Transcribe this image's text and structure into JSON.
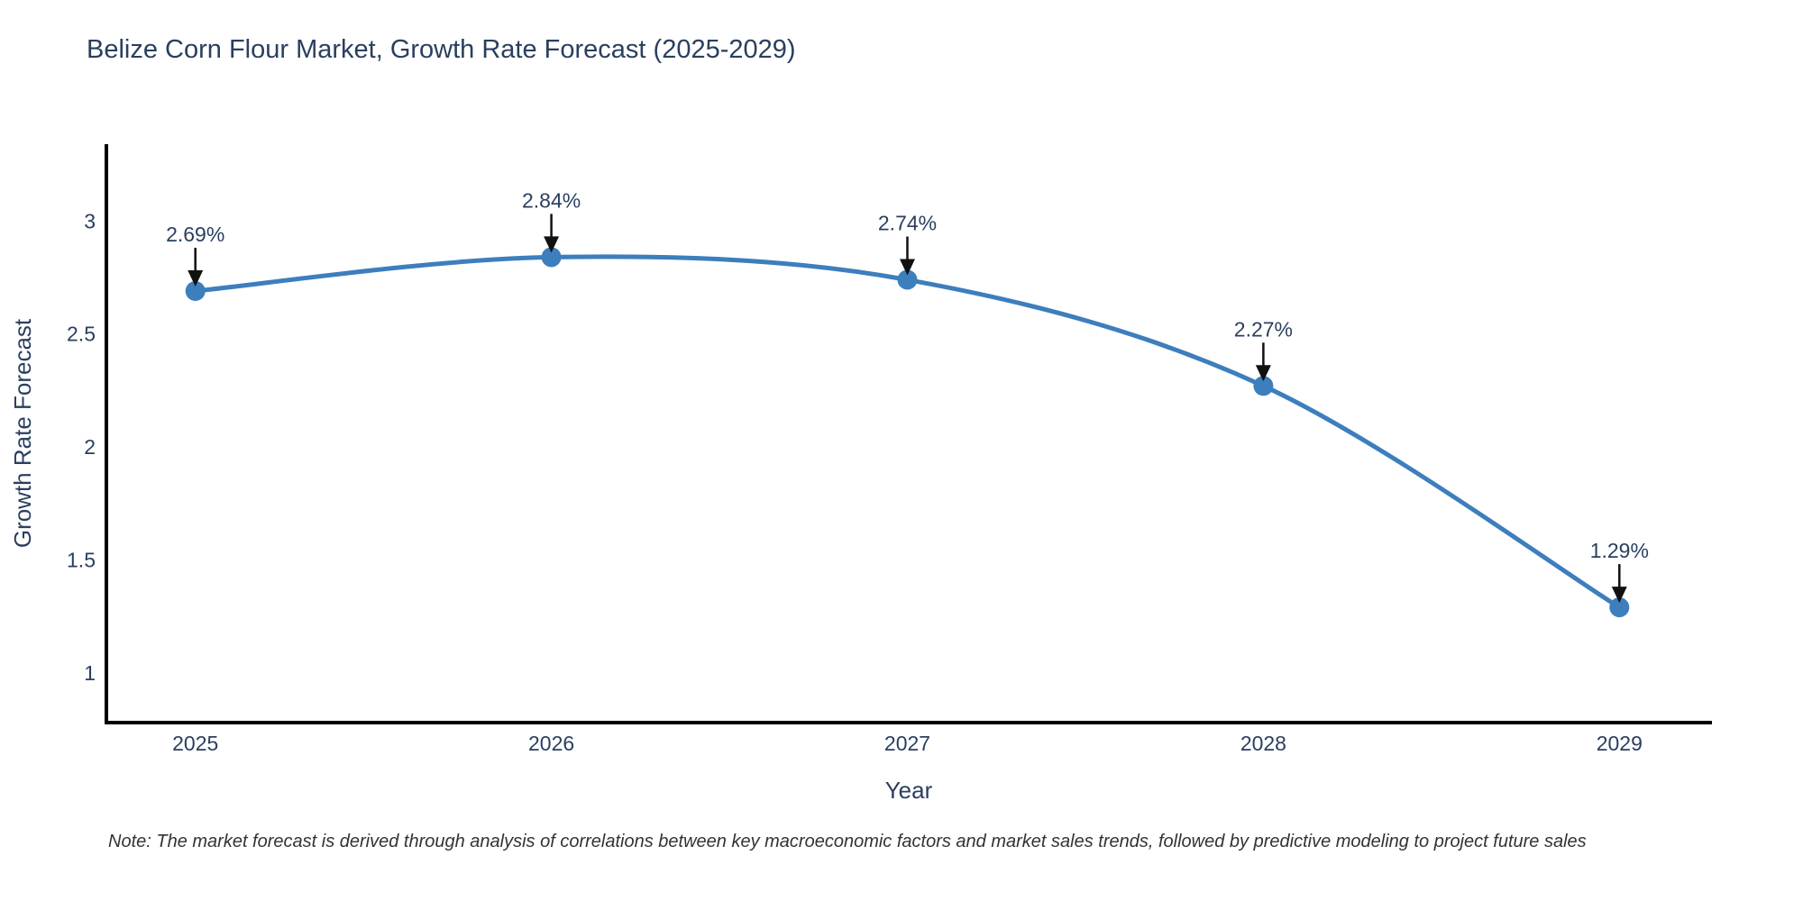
{
  "chart_data": {
    "type": "line",
    "title": "Belize Corn Flour Market, Growth Rate Forecast (2025-2029)",
    "xlabel": "Year",
    "ylabel": "Growth Rate Forecast",
    "x": [
      2025,
      2026,
      2027,
      2028,
      2029
    ],
    "series": [
      {
        "name": "Growth Rate Forecast",
        "values": [
          2.69,
          2.84,
          2.74,
          2.27,
          1.29
        ],
        "point_labels": [
          "2.69%",
          "2.84%",
          "2.74%",
          "2.27%",
          "1.29%"
        ]
      }
    ],
    "x_tick_labels": [
      "2025",
      "2026",
      "2027",
      "2028",
      "2029"
    ],
    "y_tick_values": [
      3,
      2.5,
      2,
      1.5,
      1
    ],
    "y_tick_labels": [
      "3",
      "2.5",
      "2",
      "1.5",
      "1"
    ],
    "xlim": [
      2024.75,
      2029.26
    ],
    "ylim": [
      0.78,
      3.34
    ],
    "grid": false,
    "legend_position": "none",
    "line_shape": "spline",
    "colors": {
      "line": "#3d7ebd",
      "marker": "#3d7ebd",
      "axis": "#000000",
      "text": "#2a3f5f",
      "annotation_arrow": "#111111"
    }
  },
  "note": {
    "text": "Note: The market forecast is derived through analysis of correlations between key macroeconomic factors and market sales trends, followed by predictive modeling to project future sales"
  }
}
